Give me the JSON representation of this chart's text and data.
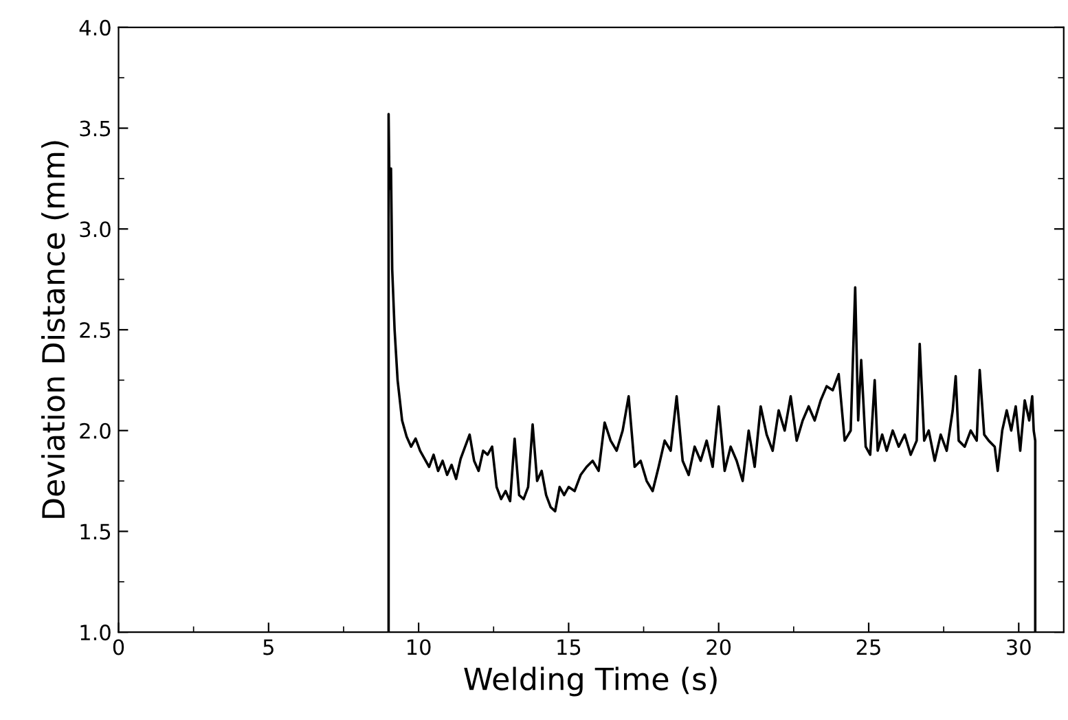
{
  "chart_data": {
    "type": "line",
    "xlabel": "Welding Time (s)",
    "ylabel": "Deviation Distance (mm)",
    "xlim": [
      0,
      31.5
    ],
    "ylim": [
      1.0,
      4.0
    ],
    "xticks": [
      0,
      5,
      10,
      15,
      20,
      25,
      30
    ],
    "yticks": [
      {
        "value": 1.0,
        "label": "1.0"
      },
      {
        "value": 1.5,
        "label": "1.5"
      },
      {
        "value": 2.0,
        "label": "2.0"
      },
      {
        "value": 2.5,
        "label": "2.5"
      },
      {
        "value": 3.0,
        "label": "3.0"
      },
      {
        "value": 3.5,
        "label": "3.5"
      },
      {
        "value": 4.0,
        "label": "4.0"
      }
    ],
    "grid": false,
    "marker": "none",
    "line_style": "solid",
    "series": [
      {
        "color": "#000000",
        "x": [
          9.0,
          9.0,
          9.03,
          9.08,
          9.12,
          9.2,
          9.3,
          9.45,
          9.6,
          9.75,
          9.9,
          10.05,
          10.2,
          10.35,
          10.5,
          10.65,
          10.8,
          10.95,
          11.1,
          11.25,
          11.4,
          11.55,
          11.7,
          11.85,
          12.0,
          12.15,
          12.3,
          12.45,
          12.6,
          12.75,
          12.9,
          13.05,
          13.2,
          13.35,
          13.5,
          13.65,
          13.8,
          13.95,
          14.1,
          14.25,
          14.4,
          14.55,
          14.7,
          14.85,
          15.0,
          15.2,
          15.4,
          15.6,
          15.8,
          16.0,
          16.2,
          16.4,
          16.6,
          16.8,
          17.0,
          17.2,
          17.4,
          17.6,
          17.8,
          18.0,
          18.2,
          18.4,
          18.6,
          18.8,
          19.0,
          19.2,
          19.4,
          19.6,
          19.8,
          20.0,
          20.2,
          20.4,
          20.6,
          20.8,
          21.0,
          21.2,
          21.4,
          21.6,
          21.8,
          22.0,
          22.2,
          22.4,
          22.6,
          22.8,
          23.0,
          23.2,
          23.4,
          23.6,
          23.8,
          24.0,
          24.2,
          24.4,
          24.55,
          24.65,
          24.75,
          24.9,
          25.05,
          25.2,
          25.3,
          25.45,
          25.6,
          25.8,
          26.0,
          26.2,
          26.4,
          26.6,
          26.7,
          26.85,
          27.0,
          27.2,
          27.4,
          27.6,
          27.8,
          27.9,
          28.0,
          28.2,
          28.4,
          28.6,
          28.7,
          28.85,
          29.0,
          29.2,
          29.3,
          29.45,
          29.6,
          29.75,
          29.9,
          30.05,
          30.2,
          30.35,
          30.45,
          30.5,
          30.55,
          30.55
        ],
        "values": [
          1.0,
          3.57,
          3.2,
          3.3,
          2.8,
          2.5,
          2.25,
          2.05,
          1.97,
          1.92,
          1.96,
          1.9,
          1.86,
          1.82,
          1.88,
          1.8,
          1.85,
          1.78,
          1.83,
          1.76,
          1.86,
          1.92,
          1.98,
          1.85,
          1.8,
          1.9,
          1.88,
          1.92,
          1.72,
          1.66,
          1.7,
          1.65,
          1.96,
          1.68,
          1.66,
          1.72,
          2.03,
          1.75,
          1.8,
          1.68,
          1.62,
          1.6,
          1.72,
          1.68,
          1.72,
          1.7,
          1.78,
          1.82,
          1.85,
          1.8,
          2.04,
          1.95,
          1.9,
          2.0,
          2.17,
          1.82,
          1.85,
          1.75,
          1.7,
          1.82,
          1.95,
          1.9,
          2.17,
          1.85,
          1.78,
          1.92,
          1.85,
          1.95,
          1.82,
          2.12,
          1.8,
          1.92,
          1.85,
          1.75,
          2.0,
          1.82,
          2.12,
          1.98,
          1.9,
          2.1,
          2.0,
          2.17,
          1.95,
          2.05,
          2.12,
          2.05,
          2.15,
          2.22,
          2.2,
          2.28,
          1.95,
          2.0,
          2.71,
          2.05,
          2.35,
          1.92,
          1.88,
          2.25,
          1.9,
          1.98,
          1.9,
          2.0,
          1.92,
          1.98,
          1.88,
          1.95,
          2.43,
          1.95,
          2.0,
          1.85,
          1.98,
          1.9,
          2.1,
          2.27,
          1.95,
          1.92,
          2.0,
          1.95,
          2.3,
          1.98,
          1.95,
          1.92,
          1.8,
          2.0,
          2.1,
          2.0,
          2.12,
          1.9,
          2.15,
          2.05,
          2.17,
          2.0,
          1.95,
          1.0
        ]
      }
    ]
  }
}
